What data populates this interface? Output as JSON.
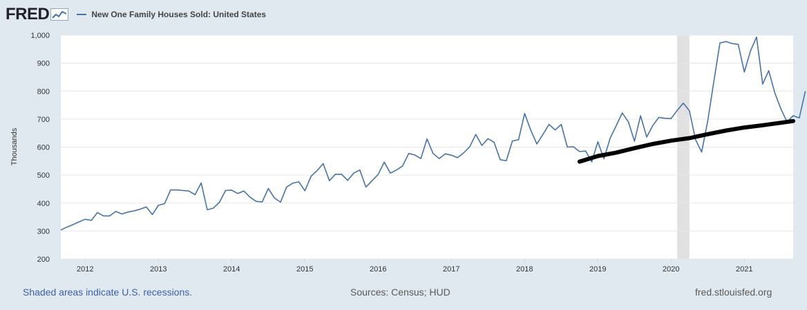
{
  "header": {
    "logo": "FRED",
    "series_title": "New One Family Houses Sold: United States"
  },
  "footer": {
    "recession_note": "Shaded areas indicate U.S. recessions.",
    "sources": "Sources: Census; HUD",
    "site": "fred.stlouisfed.org"
  },
  "colors": {
    "series": "#4572a7",
    "trend": "#000000",
    "recession": "#e1e1e1",
    "plot_bg": "#ffffff",
    "page_bg": "#e1e9f0"
  },
  "chart_data": {
    "type": "line",
    "title": "New One Family Houses Sold: United States",
    "ylabel": "Thousands",
    "xlabel": "",
    "ylim": [
      200,
      1000
    ],
    "yticks": [
      "200",
      "300",
      "400",
      "500",
      "600",
      "700",
      "800",
      "900",
      "1,000"
    ],
    "ytick_values": [
      200,
      300,
      400,
      500,
      600,
      700,
      800,
      900,
      1000
    ],
    "xlim": [
      2011.667,
      2021.667
    ],
    "xticks": [
      "2012",
      "2013",
      "2014",
      "2015",
      "2016",
      "2017",
      "2018",
      "2019",
      "2020",
      "2021"
    ],
    "xtick_values": [
      2012,
      2013,
      2014,
      2015,
      2016,
      2017,
      2018,
      2019,
      2020,
      2021
    ],
    "grid": true,
    "recessions": [
      {
        "start": 2020.083,
        "end": 2020.25
      }
    ],
    "series": [
      {
        "name": "New One Family Houses Sold: United States",
        "start": 2011.667,
        "step": 0.08333,
        "values": [
          304,
          314,
          323,
          333,
          342,
          338,
          366,
          354,
          354,
          370,
          361,
          368,
          372,
          378,
          386,
          359,
          392,
          398,
          447,
          447,
          445,
          443,
          430,
          472,
          376,
          382,
          403,
          445,
          446,
          434,
          443,
          421,
          406,
          404,
          452,
          418,
          403,
          457,
          471,
          476,
          444,
          496,
          516,
          541,
          480,
          503,
          503,
          481,
          507,
          518,
          457,
          480,
          502,
          546,
          507,
          518,
          532,
          577,
          572,
          559,
          629,
          577,
          559,
          576,
          571,
          562,
          579,
          601,
          645,
          606,
          630,
          617,
          555,
          551,
          622,
          626,
          720,
          661,
          611,
          645,
          681,
          661,
          681,
          600,
          601,
          584,
          586,
          547,
          619,
          558,
          631,
          676,
          722,
          690,
          621,
          712,
          636,
          677,
          706,
          703,
          702,
          731,
          757,
          730,
          627,
          582,
          693,
          833,
          972,
          977,
          970,
          967,
          868,
          943,
          993,
          825,
          873,
          793,
          736,
          690,
          712,
          704,
          800
        ]
      },
      {
        "name": "trend",
        "x": [
          2018.75,
          2019.0,
          2019.25,
          2019.5,
          2019.75,
          2020.0,
          2020.25,
          2020.5,
          2020.75,
          2021.0,
          2021.25,
          2021.5,
          2021.667
        ],
        "values": [
          548,
          568,
          580,
          596,
          611,
          623,
          632,
          646,
          659,
          670,
          678,
          687,
          693
        ]
      }
    ]
  }
}
